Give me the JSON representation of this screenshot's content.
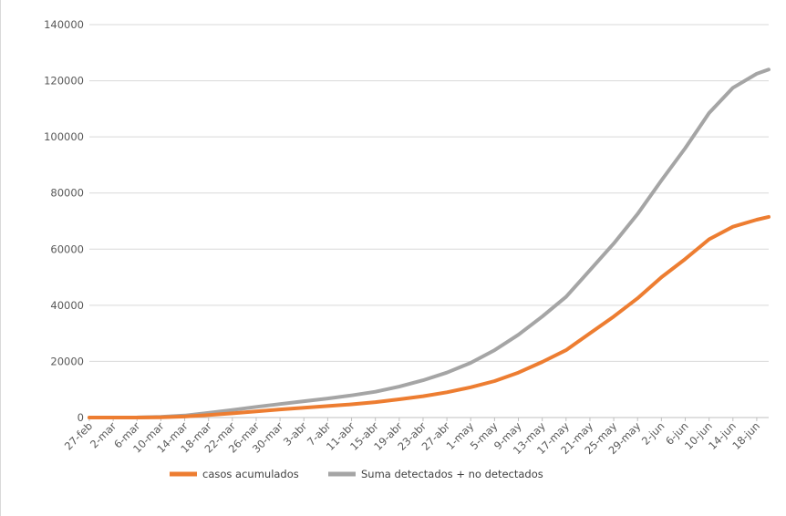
{
  "chart_data": {
    "type": "line",
    "title": "",
    "xlabel": "",
    "ylabel": "",
    "ylim": [
      0,
      140000
    ],
    "y_ticks": [
      0,
      20000,
      40000,
      60000,
      80000,
      100000,
      120000,
      140000
    ],
    "y_tick_labels": [
      "0",
      "20000",
      "40000",
      "60000",
      "80000",
      "100000",
      "120000",
      "140000"
    ],
    "x_start": "2020-02-27",
    "x_end": "2020-06-20",
    "x_tick_labels": [
      "27-feb",
      "2-mar",
      "6-mar",
      "10-mar",
      "14-mar",
      "18-mar",
      "22-mar",
      "26-mar",
      "30-mar",
      "3-abr",
      "7-abr",
      "11-abr",
      "15-abr",
      "19-abr",
      "23-abr",
      "27-abr",
      "1-may",
      "5-may",
      "9-may",
      "13-may",
      "17-may",
      "21-may",
      "25-may",
      "29-may",
      "2-jun",
      "6-jun",
      "10-jun",
      "14-jun",
      "18-jun"
    ],
    "grid": "horizontal",
    "legend_position": "bottom",
    "series": [
      {
        "name": "casos acumulados",
        "color": "#ed7d31",
        "points": [
          [
            "2020-02-27",
            0
          ],
          [
            "2020-03-02",
            0
          ],
          [
            "2020-03-06",
            10
          ],
          [
            "2020-03-10",
            100
          ],
          [
            "2020-03-14",
            350
          ],
          [
            "2020-03-18",
            900
          ],
          [
            "2020-03-22",
            1500
          ],
          [
            "2020-03-26",
            2200
          ],
          [
            "2020-03-30",
            2900
          ],
          [
            "2020-04-03",
            3500
          ],
          [
            "2020-04-07",
            4100
          ],
          [
            "2020-04-11",
            4700
          ],
          [
            "2020-04-15",
            5500
          ],
          [
            "2020-04-19",
            6500
          ],
          [
            "2020-04-23",
            7600
          ],
          [
            "2020-04-27",
            9000
          ],
          [
            "2020-05-01",
            10800
          ],
          [
            "2020-05-05",
            13000
          ],
          [
            "2020-05-09",
            16000
          ],
          [
            "2020-05-13",
            19800
          ],
          [
            "2020-05-17",
            24000
          ],
          [
            "2020-05-21",
            30000
          ],
          [
            "2020-05-25",
            36000
          ],
          [
            "2020-05-29",
            42500
          ],
          [
            "2020-06-02",
            50000
          ],
          [
            "2020-06-06",
            56500
          ],
          [
            "2020-06-10",
            63500
          ],
          [
            "2020-06-14",
            68000
          ],
          [
            "2020-06-18",
            70500
          ],
          [
            "2020-06-20",
            71500
          ]
        ]
      },
      {
        "name": "Suma detectados + no detectados",
        "color": "#a5a5a5",
        "points": [
          [
            "2020-02-27",
            0
          ],
          [
            "2020-03-02",
            0
          ],
          [
            "2020-03-06",
            30
          ],
          [
            "2020-03-10",
            250
          ],
          [
            "2020-03-14",
            700
          ],
          [
            "2020-03-18",
            1700
          ],
          [
            "2020-03-22",
            2700
          ],
          [
            "2020-03-26",
            3800
          ],
          [
            "2020-03-30",
            4800
          ],
          [
            "2020-04-03",
            5800
          ],
          [
            "2020-04-07",
            6800
          ],
          [
            "2020-04-11",
            7900
          ],
          [
            "2020-04-15",
            9200
          ],
          [
            "2020-04-19",
            11000
          ],
          [
            "2020-04-23",
            13300
          ],
          [
            "2020-04-27",
            16000
          ],
          [
            "2020-05-01",
            19500
          ],
          [
            "2020-05-05",
            24000
          ],
          [
            "2020-05-09",
            29500
          ],
          [
            "2020-05-13",
            36000
          ],
          [
            "2020-05-17",
            43000
          ],
          [
            "2020-05-21",
            52500
          ],
          [
            "2020-05-25",
            62000
          ],
          [
            "2020-05-29",
            72500
          ],
          [
            "2020-06-02",
            84500
          ],
          [
            "2020-06-06",
            96000
          ],
          [
            "2020-06-10",
            108500
          ],
          [
            "2020-06-14",
            117500
          ],
          [
            "2020-06-18",
            122500
          ],
          [
            "2020-06-20",
            124000
          ]
        ]
      }
    ]
  }
}
